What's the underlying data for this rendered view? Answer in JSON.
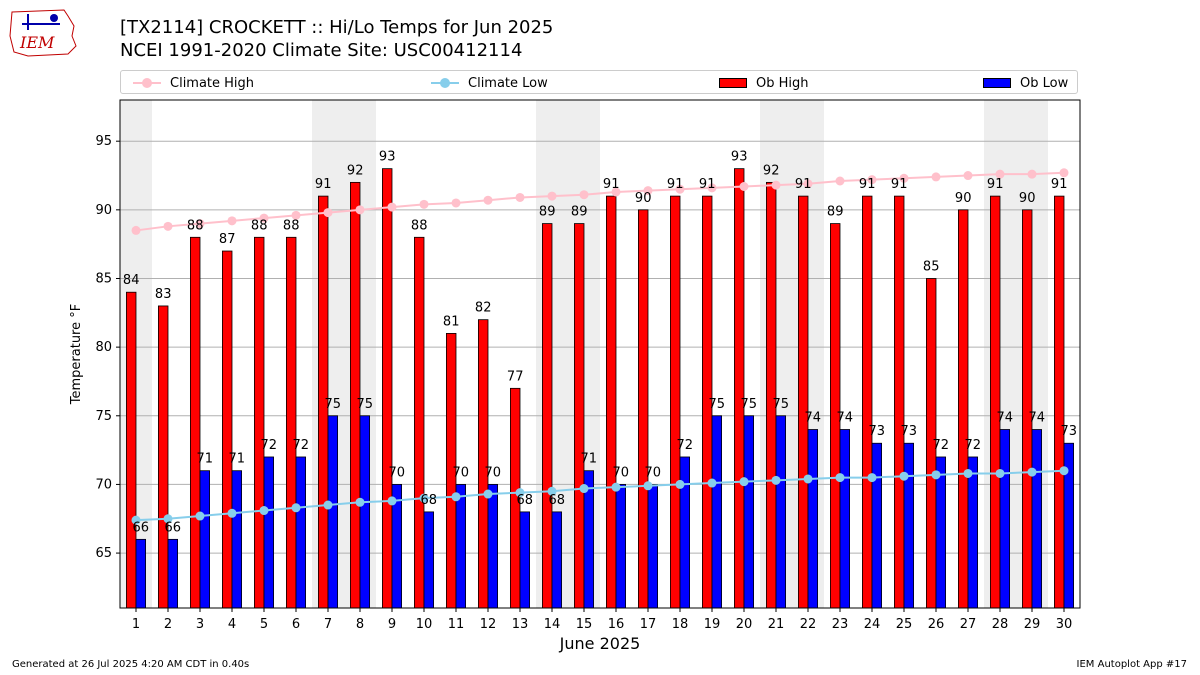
{
  "logo": {
    "text": "IEM"
  },
  "title_line1": "[TX2114] CROCKETT :: Hi/Lo Temps for Jun 2025",
  "title_line2": "NCEI 1991-2020 Climate Site: USC00412114",
  "footer_left": "Generated at 26 Jul 2025 4:20 AM CDT in 0.40s",
  "footer_right": "IEM Autoplot App #17",
  "colors": {
    "ob_high": "#ff0000",
    "ob_low": "#0000ff",
    "climate_high": "#ffc0cb",
    "climate_low": "#87ceeb",
    "weekend_band": "#eeeeee",
    "grid": "#b0b0b0"
  },
  "chart_data": {
    "type": "bar",
    "xlabel": "June 2025",
    "ylabel": "Temperature °F",
    "ylim": [
      61,
      98
    ],
    "yticks": [
      65,
      70,
      75,
      80,
      85,
      90,
      95
    ],
    "grid": "horizontal",
    "legend_position": "top",
    "categories": [
      "1",
      "2",
      "3",
      "4",
      "5",
      "6",
      "7",
      "8",
      "9",
      "10",
      "11",
      "12",
      "13",
      "14",
      "15",
      "16",
      "17",
      "18",
      "19",
      "20",
      "21",
      "22",
      "23",
      "24",
      "25",
      "26",
      "27",
      "28",
      "29",
      "30"
    ],
    "weekend_days": [
      1,
      7,
      8,
      14,
      15,
      21,
      22,
      28,
      29
    ],
    "series": [
      {
        "name": "Ob High",
        "kind": "bar",
        "values": [
          84,
          83,
          88,
          87,
          88,
          88,
          91,
          92,
          93,
          88,
          81,
          82,
          77,
          89,
          89,
          91,
          90,
          91,
          91,
          93,
          92,
          91,
          89,
          91,
          91,
          85,
          90,
          91,
          90,
          91
        ]
      },
      {
        "name": "Ob Low",
        "kind": "bar",
        "values": [
          66,
          66,
          71,
          71,
          72,
          72,
          75,
          75,
          70,
          68,
          70,
          70,
          68,
          68,
          71,
          70,
          70,
          72,
          75,
          75,
          75,
          74,
          74,
          73,
          73,
          72,
          72,
          74,
          74,
          73
        ]
      },
      {
        "name": "Climate High",
        "kind": "line",
        "values": [
          88.5,
          88.8,
          89.0,
          89.2,
          89.4,
          89.6,
          89.8,
          90.0,
          90.2,
          90.4,
          90.5,
          90.7,
          90.9,
          91.0,
          91.1,
          91.3,
          91.4,
          91.5,
          91.6,
          91.7,
          91.8,
          91.9,
          92.1,
          92.2,
          92.3,
          92.4,
          92.5,
          92.6,
          92.6,
          92.7
        ]
      },
      {
        "name": "Climate Low",
        "kind": "line",
        "values": [
          67.4,
          67.5,
          67.7,
          67.9,
          68.1,
          68.3,
          68.5,
          68.7,
          68.8,
          69.0,
          69.1,
          69.3,
          69.4,
          69.5,
          69.7,
          69.8,
          69.9,
          70.0,
          70.1,
          70.2,
          70.3,
          70.4,
          70.5,
          70.5,
          70.6,
          70.7,
          70.8,
          70.8,
          70.9,
          71.0
        ]
      }
    ]
  }
}
